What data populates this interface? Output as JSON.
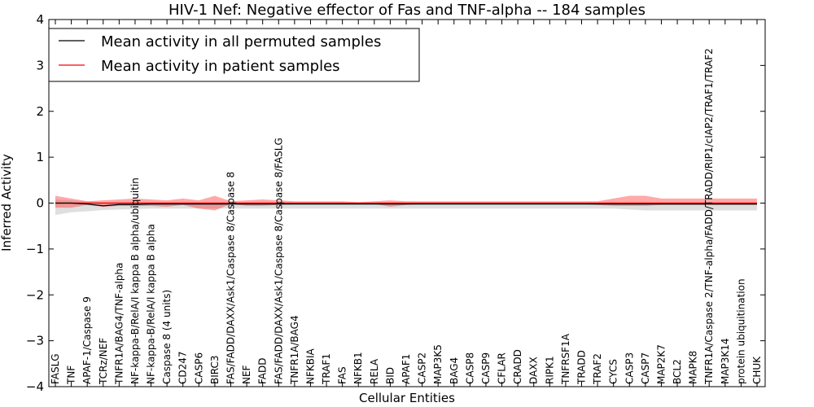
{
  "chart_data": {
    "type": "line",
    "title": "HIV-1 Nef: Negative effector of Fas and TNF-alpha -- 184 samples",
    "xlabel": "Cellular Entities",
    "ylabel": "Inferred Activity",
    "ylim": [
      -4,
      4
    ],
    "yticks": [
      4,
      3,
      2,
      1,
      0,
      -1,
      -2,
      -3,
      -4
    ],
    "ytick_labels": [
      "4",
      "3",
      "2",
      "1",
      "0",
      "−1",
      "−2",
      "−3",
      "−4"
    ],
    "grid": false,
    "legend_position": "top-left",
    "categories": [
      "FASLG",
      "TNF",
      "APAF-1/Caspase 9",
      "TCRz/NEF",
      "TNFR1A/BAG4/TNF-alpha",
      "NF-kappa-B/RelA/I kappa B alpha/ubiquitin",
      "NF-kappa-B/RelA/I kappa B alpha",
      "Caspase 8 (4 units)",
      "CD247",
      "CASP6",
      "BIRC3",
      "FAS/FADD/DAXX/Ask1/Caspase 8/Caspase 8",
      "NEF",
      "FADD",
      "FAS/FADD/DAXX/Ask1/Caspase 8/Caspase 8/FASLG",
      "TNFR1A/BAG4",
      "NFKBIA",
      "TRAF1",
      "FAS",
      "NFKB1",
      "RELA",
      "BID",
      "APAF1",
      "CASP2",
      "MAP3K5",
      "BAG4",
      "CASP8",
      "CASP9",
      "CFLAR",
      "CRADD",
      "DAXX",
      "RIPK1",
      "TNFRSF1A",
      "TRADD",
      "TRAF2",
      "CYCS",
      "CASP3",
      "CASP7",
      "MAP2K7",
      "BCL2",
      "MAPK8",
      "TNFR1A/Caspase 2/TNF-alpha/FADD/TRADD/RIP1/cIAP2/TRAF1/TRAF2",
      "MAP3K14",
      "protein ubiquitination",
      "CHUK"
    ],
    "series": [
      {
        "name": "Mean activity in all permuted samples",
        "color": "#000000",
        "values": [
          0,
          0,
          -0.02,
          -0.06,
          -0.03,
          -0.03,
          -0.02,
          -0.02,
          -0.02,
          -0.02,
          -0.02,
          -0.02,
          -0.02,
          -0.02,
          -0.02,
          -0.02,
          -0.02,
          -0.02,
          -0.02,
          -0.02,
          -0.02,
          -0.02,
          -0.02,
          -0.02,
          -0.02,
          -0.02,
          -0.02,
          -0.02,
          -0.02,
          -0.02,
          -0.02,
          -0.02,
          -0.02,
          -0.02,
          -0.02,
          -0.02,
          -0.02,
          -0.02,
          -0.02,
          -0.02,
          -0.02,
          -0.02,
          -0.02,
          -0.02,
          -0.02
        ],
        "band_upper": [
          0.08,
          0.06,
          0.04,
          0.02,
          0.02,
          0.02,
          0.02,
          0.02,
          0.02,
          0.02,
          0.02,
          0.02,
          0.02,
          0.02,
          0.02,
          0.02,
          0.02,
          0.02,
          0.02,
          0.02,
          0.02,
          0.02,
          0.02,
          0.02,
          0.02,
          0.02,
          0.02,
          0.02,
          0.02,
          0.02,
          0.02,
          0.02,
          0.02,
          0.02,
          0.02,
          0.02,
          0.02,
          0.02,
          0.02,
          0.02,
          0.02,
          0.02,
          0.02,
          0.02,
          0.02
        ],
        "band_lower": [
          -0.26,
          -0.2,
          -0.18,
          -0.15,
          -0.14,
          -0.13,
          -0.12,
          -0.12,
          -0.12,
          -0.12,
          -0.12,
          -0.12,
          -0.12,
          -0.12,
          -0.12,
          -0.12,
          -0.12,
          -0.12,
          -0.12,
          -0.12,
          -0.12,
          -0.12,
          -0.12,
          -0.12,
          -0.12,
          -0.12,
          -0.12,
          -0.12,
          -0.12,
          -0.12,
          -0.12,
          -0.12,
          -0.12,
          -0.12,
          -0.12,
          -0.12,
          -0.14,
          -0.16,
          -0.16,
          -0.16,
          -0.16,
          -0.16,
          -0.16,
          -0.16,
          -0.16
        ],
        "band_color": "#b0b0b0"
      },
      {
        "name": "Mean activity in patient samples",
        "color": "#ff0000",
        "values": [
          0,
          0,
          0,
          0,
          0,
          0,
          0,
          0,
          0,
          0,
          0,
          0,
          0,
          0,
          0,
          0,
          0,
          0,
          0,
          0,
          0,
          0,
          0,
          0,
          0,
          0,
          0,
          0,
          0,
          0,
          0,
          0,
          0,
          0,
          0,
          0,
          0,
          0,
          0,
          0,
          0,
          0,
          0,
          0,
          0
        ],
        "band_upper": [
          0.16,
          0.1,
          0.04,
          0.06,
          0.08,
          0.1,
          0.08,
          0.06,
          0.1,
          0.06,
          0.16,
          0.04,
          0.06,
          0.08,
          0.06,
          0.04,
          0.04,
          0.04,
          0.04,
          0.02,
          0.04,
          0.06,
          0.04,
          0.04,
          0.04,
          0.04,
          0.04,
          0.04,
          0.04,
          0.04,
          0.04,
          0.04,
          0.04,
          0.04,
          0.04,
          0.1,
          0.16,
          0.16,
          0.1,
          0.1,
          0.1,
          0.1,
          0.1,
          0.1,
          0.1
        ],
        "band_lower": [
          -0.1,
          -0.1,
          -0.04,
          -0.08,
          -0.06,
          -0.06,
          -0.06,
          -0.08,
          -0.04,
          -0.12,
          -0.16,
          -0.02,
          -0.06,
          -0.06,
          -0.04,
          -0.02,
          -0.02,
          -0.02,
          -0.02,
          -0.02,
          -0.02,
          -0.08,
          -0.04,
          -0.02,
          -0.02,
          -0.02,
          -0.02,
          -0.02,
          -0.02,
          -0.02,
          -0.02,
          -0.02,
          -0.02,
          -0.02,
          -0.04,
          -0.06,
          -0.06,
          -0.06,
          -0.04,
          -0.04,
          -0.04,
          -0.04,
          -0.04,
          -0.04,
          -0.04
        ],
        "band_color": "#ff4040"
      }
    ]
  }
}
